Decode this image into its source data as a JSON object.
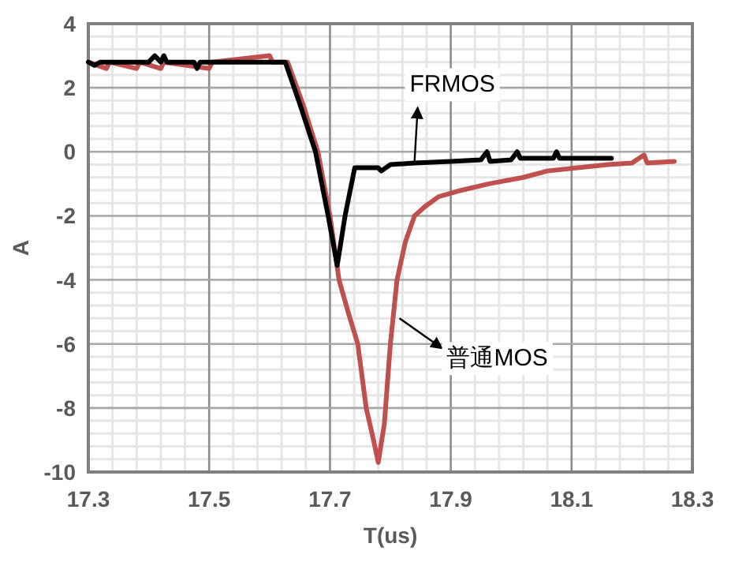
{
  "chart_data": {
    "type": "line",
    "xlabel": "T(us)",
    "ylabel": "A",
    "xlim": [
      17.3,
      18.3
    ],
    "ylim": [
      -10,
      4
    ],
    "xticks": [
      17.3,
      17.5,
      17.7,
      17.9,
      18.1,
      18.3
    ],
    "yticks": [
      -10,
      -8,
      -6,
      -4,
      -2,
      0,
      2,
      4
    ],
    "grid": true,
    "marker": "none",
    "line_style": "solid",
    "series": [
      {
        "color": "#c0504d",
        "x": [
          17.3,
          17.33,
          17.335,
          17.38,
          17.385,
          17.42,
          17.425,
          17.5,
          17.505,
          17.6,
          17.605,
          17.63,
          17.655,
          17.68,
          17.7,
          17.715,
          17.73,
          17.746,
          17.76,
          17.772,
          17.78,
          17.79,
          17.8,
          17.811,
          17.825,
          17.84,
          17.858,
          17.88,
          17.918,
          17.963,
          18.02,
          18.06,
          18.11,
          18.16,
          18.2,
          18.22,
          18.225,
          18.27
        ],
        "values": [
          2.8,
          2.6,
          2.8,
          2.6,
          2.8,
          2.6,
          2.8,
          2.6,
          2.8,
          3.0,
          2.8,
          2.8,
          1.5,
          0,
          -2,
          -4,
          -5,
          -6,
          -8,
          -9,
          -9.7,
          -8.5,
          -6,
          -4,
          -2.8,
          -2,
          -1.7,
          -1.4,
          -1.2,
          -1.0,
          -0.8,
          -0.6,
          -0.5,
          -0.4,
          -0.35,
          -0.1,
          -0.35,
          -0.3
        ]
      },
      {
        "color": "#000000",
        "x": [
          17.3,
          17.31,
          17.32,
          17.4,
          17.41,
          17.42,
          17.425,
          17.43,
          17.475,
          17.48,
          17.485,
          17.626,
          17.65,
          17.676,
          17.697,
          17.712,
          17.725,
          17.741,
          17.78,
          17.785,
          17.8,
          17.84,
          17.9,
          17.95,
          17.96,
          17.965,
          18.0,
          18.01,
          18.015,
          18.07,
          18.075,
          18.08,
          18.166
        ],
        "values": [
          2.8,
          2.7,
          2.8,
          2.8,
          3.0,
          2.8,
          3.0,
          2.8,
          2.8,
          2.6,
          2.8,
          2.8,
          1.5,
          0,
          -2,
          -3.55,
          -2,
          -0.5,
          -0.5,
          -0.6,
          -0.4,
          -0.35,
          -0.3,
          -0.25,
          0,
          -0.3,
          -0.25,
          0,
          -0.2,
          -0.2,
          0,
          -0.2,
          -0.2
        ]
      }
    ],
    "annotations": [
      {
        "text": "FRMOS",
        "x": 17.84,
        "y": -0.3
      },
      {
        "text": "普通MOS",
        "x": 17.815,
        "y": -5.2
      }
    ]
  }
}
